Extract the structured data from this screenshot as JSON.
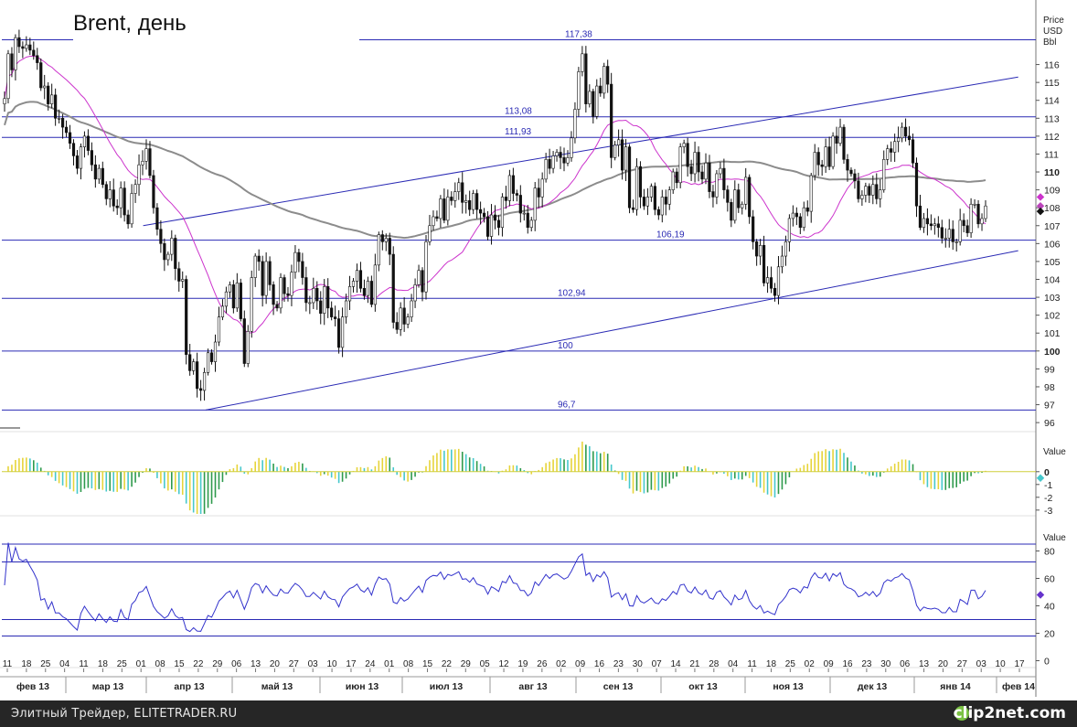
{
  "chart_data": [
    {
      "type": "candlestick",
      "title": "Brent, день",
      "ylabel_lines": [
        "Price",
        "USD",
        "Bbl"
      ],
      "ylim": [
        95.7,
        119.4
      ],
      "yticks": [
        96,
        97,
        98,
        99,
        100,
        101,
        102,
        103,
        104,
        105,
        106,
        107,
        108,
        109,
        110,
        111,
        112,
        113,
        114,
        115,
        116
      ],
      "bold_ticks": [
        100,
        110
      ],
      "levels": [
        {
          "value": 117.38,
          "label": "117,38"
        },
        {
          "value": 113.08,
          "label": "113,08"
        },
        {
          "value": 111.93,
          "label": "111,93"
        },
        {
          "value": 106.19,
          "label": "106,19"
        },
        {
          "value": 102.94,
          "label": "102,94"
        },
        {
          "value": 100,
          "label": "100"
        },
        {
          "value": 96.7,
          "label": "96,7"
        }
      ],
      "trendlines": [
        {
          "from": [
            "2013-04-19",
            96.7
          ],
          "to": [
            "2014-02-12",
            105.6
          ]
        },
        {
          "from": [
            "2013-03-27",
            107.0
          ],
          "to": [
            "2014-02-12",
            115.3
          ]
        }
      ],
      "close_series": [
        114.1,
        116.6,
        115.7,
        117.5,
        117.0,
        116.9,
        117.1,
        116.8,
        116.5,
        116.1,
        114.7,
        114.8,
        113.8,
        114.3,
        113.0,
        113.0,
        112.5,
        112.2,
        111.6,
        110.9,
        110.2,
        111.4,
        112.0,
        111.2,
        110.4,
        109.6,
        110.2,
        109.3,
        108.5,
        109.0,
        108.1,
        108.0,
        109.1,
        107.6,
        107.1,
        108.8,
        109.3,
        110.4,
        110.6,
        111.3,
        109.8,
        108.0,
        106.8,
        106.0,
        105.1,
        105.4,
        106.3,
        104.6,
        103.9,
        104.0,
        99.8,
        98.9,
        99.4,
        97.9,
        97.8,
        98.8,
        99.9,
        99.4,
        100.5,
        101.9,
        102.5,
        103.3,
        103.7,
        102.4,
        103.8,
        101.8,
        99.3,
        101.1,
        104.1,
        105.3,
        105.0,
        103.1,
        105.0,
        103.7,
        102.6,
        102.4,
        104.1,
        103.2,
        103.1,
        104.4,
        105.5,
        105.0,
        104.1,
        102.7,
        102.7,
        103.5,
        102.8,
        102.1,
        103.6,
        102.4,
        101.9,
        101.8,
        100.2,
        101.9,
        102.8,
        103.6,
        103.9,
        104.5,
        103.5,
        103.1,
        103.9,
        102.6,
        104.8,
        106.5,
        106.1,
        106.3,
        105.4,
        101.6,
        101.2,
        102.4,
        101.5,
        101.9,
        102.8,
        103.7,
        104.5,
        103.3,
        106.1,
        107.0,
        107.5,
        107.4,
        108.5,
        107.3,
        108.6,
        108.4,
        108.9,
        109.4,
        108.3,
        108.4,
        107.9,
        108.8,
        107.9,
        107.7,
        107.5,
        106.4,
        107.6,
        107.3,
        106.9,
        108.6,
        108.4,
        109.8,
        108.8,
        108.7,
        107.7,
        107.7,
        106.9,
        107.3,
        109.1,
        108.6,
        109.6,
        110.7,
        110.2,
        110.9,
        111.1,
        110.8,
        110.5,
        110.8,
        111.9,
        113.5,
        115.6,
        116.6,
        113.8,
        114.5,
        113.1,
        114.8,
        114.4,
        115.9,
        114.9,
        110.8,
        111.5,
        111.8,
        110.1,
        111.4,
        108.0,
        107.9,
        110.3,
        108.6,
        108.1,
        108.6,
        109.2,
        107.9,
        107.6,
        108.6,
        108.2,
        109.0,
        110.0,
        109.4,
        111.4,
        111.6,
        110.3,
        109.9,
        111.1,
        110.0,
        109.6,
        110.5,
        108.9,
        108.6,
        109.9,
        110.2,
        109.0,
        108.3,
        107.3,
        109.0,
        108.0,
        108.2,
        109.7,
        107.5,
        106.1,
        105.3,
        105.9,
        103.8,
        104.1,
        103.5,
        103.1,
        104.7,
        105.3,
        106.1,
        107.4,
        107.7,
        107.5,
        106.9,
        108.0,
        107.8,
        109.8,
        111.1,
        110.4,
        110.3,
        111.4,
        110.3,
        112.0,
        111.6,
        112.5,
        110.7,
        110.1,
        109.9,
        109.5,
        108.5,
        108.7,
        109.2,
        108.7,
        109.3,
        108.5,
        109.0,
        110.7,
        111.3,
        111.1,
        111.7,
        111.9,
        112.5,
        112.0,
        111.8,
        110.5,
        108.1,
        106.9,
        107.4,
        107.1,
        107.0,
        107.1,
        106.9,
        106.3,
        106.3,
        106.8,
        106.1,
        106.1,
        107.3,
        107.0,
        106.6,
        108.2,
        108.2,
        107.1,
        107.4,
        108.1
      ],
      "sma20": true,
      "sma200": true,
      "x_labels": [
        "11",
        "18",
        "25",
        "04",
        "11",
        "18",
        "25",
        "01",
        "08",
        "15",
        "22",
        "29",
        "06",
        "13",
        "20",
        "27",
        "03",
        "10",
        "17",
        "24",
        "01",
        "08",
        "15",
        "22",
        "29",
        "05",
        "12",
        "19",
        "26",
        "02",
        "09",
        "16",
        "23",
        "30",
        "07",
        "14",
        "21",
        "28",
        "04",
        "11",
        "18",
        "25",
        "02",
        "09",
        "16",
        "23",
        "30",
        "06",
        "13",
        "20",
        "27",
        "03",
        "10",
        "17"
      ],
      "months": [
        "фев 13",
        "мар 13",
        "апр 13",
        "май 13",
        "июн 13",
        "июл 13",
        "авг 13",
        "сен 13",
        "окт 13",
        "ноя 13",
        "дек 13",
        "янв 14",
        "фев 14"
      ]
    },
    {
      "type": "histogram",
      "ylabel": "Value",
      "ylim": [
        -3.3,
        2.7
      ],
      "yticks": [
        0,
        -1,
        -2,
        -3
      ],
      "positive_color": "#e6d43a",
      "negative_color": "#46c8cc"
    },
    {
      "type": "line",
      "ylabel": "Value",
      "ylim": [
        -5,
        95
      ],
      "yticks": [
        0,
        20,
        40,
        60,
        80
      ],
      "levels": [
        85,
        72,
        30,
        18
      ],
      "series_color": "#3333cc"
    }
  ],
  "footer": {
    "credit": "Элитный Трейдер, ELITETRADER.RU",
    "brand": "clip2net.com"
  }
}
